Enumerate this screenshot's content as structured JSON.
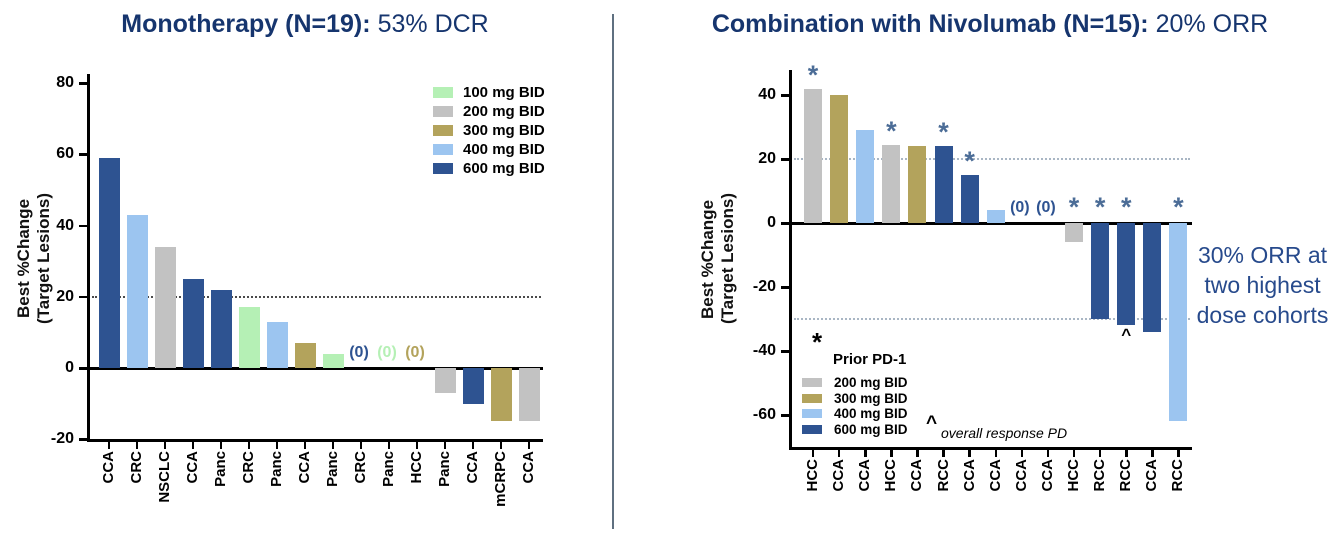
{
  "dose_colors": {
    "100": "#b5f0b5",
    "200": "#c2c2c2",
    "300": "#b3a35c",
    "400": "#9cc5f0",
    "600": "#2e5391"
  },
  "star_color": "#4c6d97",
  "title_color": "#16356e",
  "left_chart": {
    "title_bold": "Monotherapy (N=19):",
    "title_rest": "53% DCR",
    "ylabel_line1": "Best %Change",
    "ylabel_line2": "(Target Lesions)",
    "legend": [
      {
        "dose": "100",
        "label": "100 mg BID"
      },
      {
        "dose": "200",
        "label": "200 mg BID"
      },
      {
        "dose": "300",
        "label": "300 mg BID"
      },
      {
        "dose": "400",
        "label": "400 mg BID"
      },
      {
        "dose": "600",
        "label": "600 mg BID"
      }
    ],
    "chart_data": {
      "type": "bar",
      "title": "Monotherapy (N=19): 53% DCR",
      "ylabel": "Best %Change (Target Lesions)",
      "ylim": [
        -20,
        80
      ],
      "yticks": [
        80,
        60,
        40,
        20,
        0,
        -20
      ],
      "reference_lines": [
        20
      ],
      "bars": [
        {
          "label": "CCA",
          "value": 59,
          "dose": "600"
        },
        {
          "label": "CRC",
          "value": 43,
          "dose": "400"
        },
        {
          "label": "NSCLC",
          "value": 34,
          "dose": "200"
        },
        {
          "label": "CCA",
          "value": 25,
          "dose": "600"
        },
        {
          "label": "Panc",
          "value": 22,
          "dose": "600"
        },
        {
          "label": "CRC",
          "value": 17,
          "dose": "100"
        },
        {
          "label": "Panc",
          "value": 13,
          "dose": "400"
        },
        {
          "label": "CCA",
          "value": 7,
          "dose": "300"
        },
        {
          "label": "Panc",
          "value": 4,
          "dose": "100"
        },
        {
          "label": "CRC",
          "value": 0,
          "dose": "600",
          "zero_label": "(0)"
        },
        {
          "label": "Panc",
          "value": 0,
          "dose": "100",
          "zero_label": "(0)"
        },
        {
          "label": "HCC",
          "value": 0,
          "dose": "300",
          "zero_label": "(0)"
        },
        {
          "label": "Panc",
          "value": -7,
          "dose": "200"
        },
        {
          "label": "CCA",
          "value": -10,
          "dose": "600"
        },
        {
          "label": "mCRPC",
          "value": -15,
          "dose": "300"
        },
        {
          "label": "CCA",
          "value": -15,
          "dose": "200"
        }
      ]
    }
  },
  "right_chart": {
    "title_bold": "Combination with Nivolumab (N=15):",
    "title_rest": "20% ORR",
    "ylabel_line1": "Best %Change",
    "ylabel_line2": "(Target Lesions)",
    "legend_header_symbol": "*",
    "legend_header_label": "Prior PD-1",
    "legend": [
      {
        "dose": "200",
        "label": "200 mg BID"
      },
      {
        "dose": "300",
        "label": "300 mg BID"
      },
      {
        "dose": "400",
        "label": "400 mg BID"
      },
      {
        "dose": "600",
        "label": "600 mg BID"
      }
    ],
    "footnote_symbol": "^",
    "footnote_label": "overall response PD",
    "annotation_lines": [
      "30% ORR at",
      "two highest",
      "dose cohorts"
    ],
    "chart_data": {
      "type": "bar",
      "title": "Combination with Nivolumab (N=15): 20% ORR",
      "ylabel": "Best %Change (Target Lesions)",
      "ylim": [
        -70,
        47
      ],
      "yticks": [
        40,
        20,
        0,
        -20,
        -40,
        -60
      ],
      "reference_lines": [
        20,
        -30
      ],
      "bars": [
        {
          "label": "HCC",
          "value": 42,
          "dose": "200",
          "star": true
        },
        {
          "label": "CCA",
          "value": 40,
          "dose": "300"
        },
        {
          "label": "CCA",
          "value": 29,
          "dose": "400"
        },
        {
          "label": "HCC",
          "value": 24.5,
          "dose": "200",
          "star": true
        },
        {
          "label": "CCA",
          "value": 24,
          "dose": "300"
        },
        {
          "label": "RCC",
          "value": 24,
          "dose": "600",
          "star": true
        },
        {
          "label": "CCA",
          "value": 15,
          "dose": "600",
          "star": true
        },
        {
          "label": "CCA",
          "value": 4,
          "dose": "400"
        },
        {
          "label": "CCA",
          "value": 0,
          "dose": "600",
          "zero_label": "(0)"
        },
        {
          "label": "CCA",
          "value": 0,
          "dose": "600",
          "zero_label": "(0)"
        },
        {
          "label": "HCC",
          "value": -6,
          "dose": "200",
          "star": true
        },
        {
          "label": "RCC",
          "value": -30,
          "dose": "600",
          "star": true
        },
        {
          "label": "RCC",
          "value": -32,
          "dose": "600",
          "star": true,
          "caret": true
        },
        {
          "label": "CCA",
          "value": -34,
          "dose": "600"
        },
        {
          "label": "RCC",
          "value": -62,
          "dose": "400",
          "star": true
        }
      ]
    }
  }
}
